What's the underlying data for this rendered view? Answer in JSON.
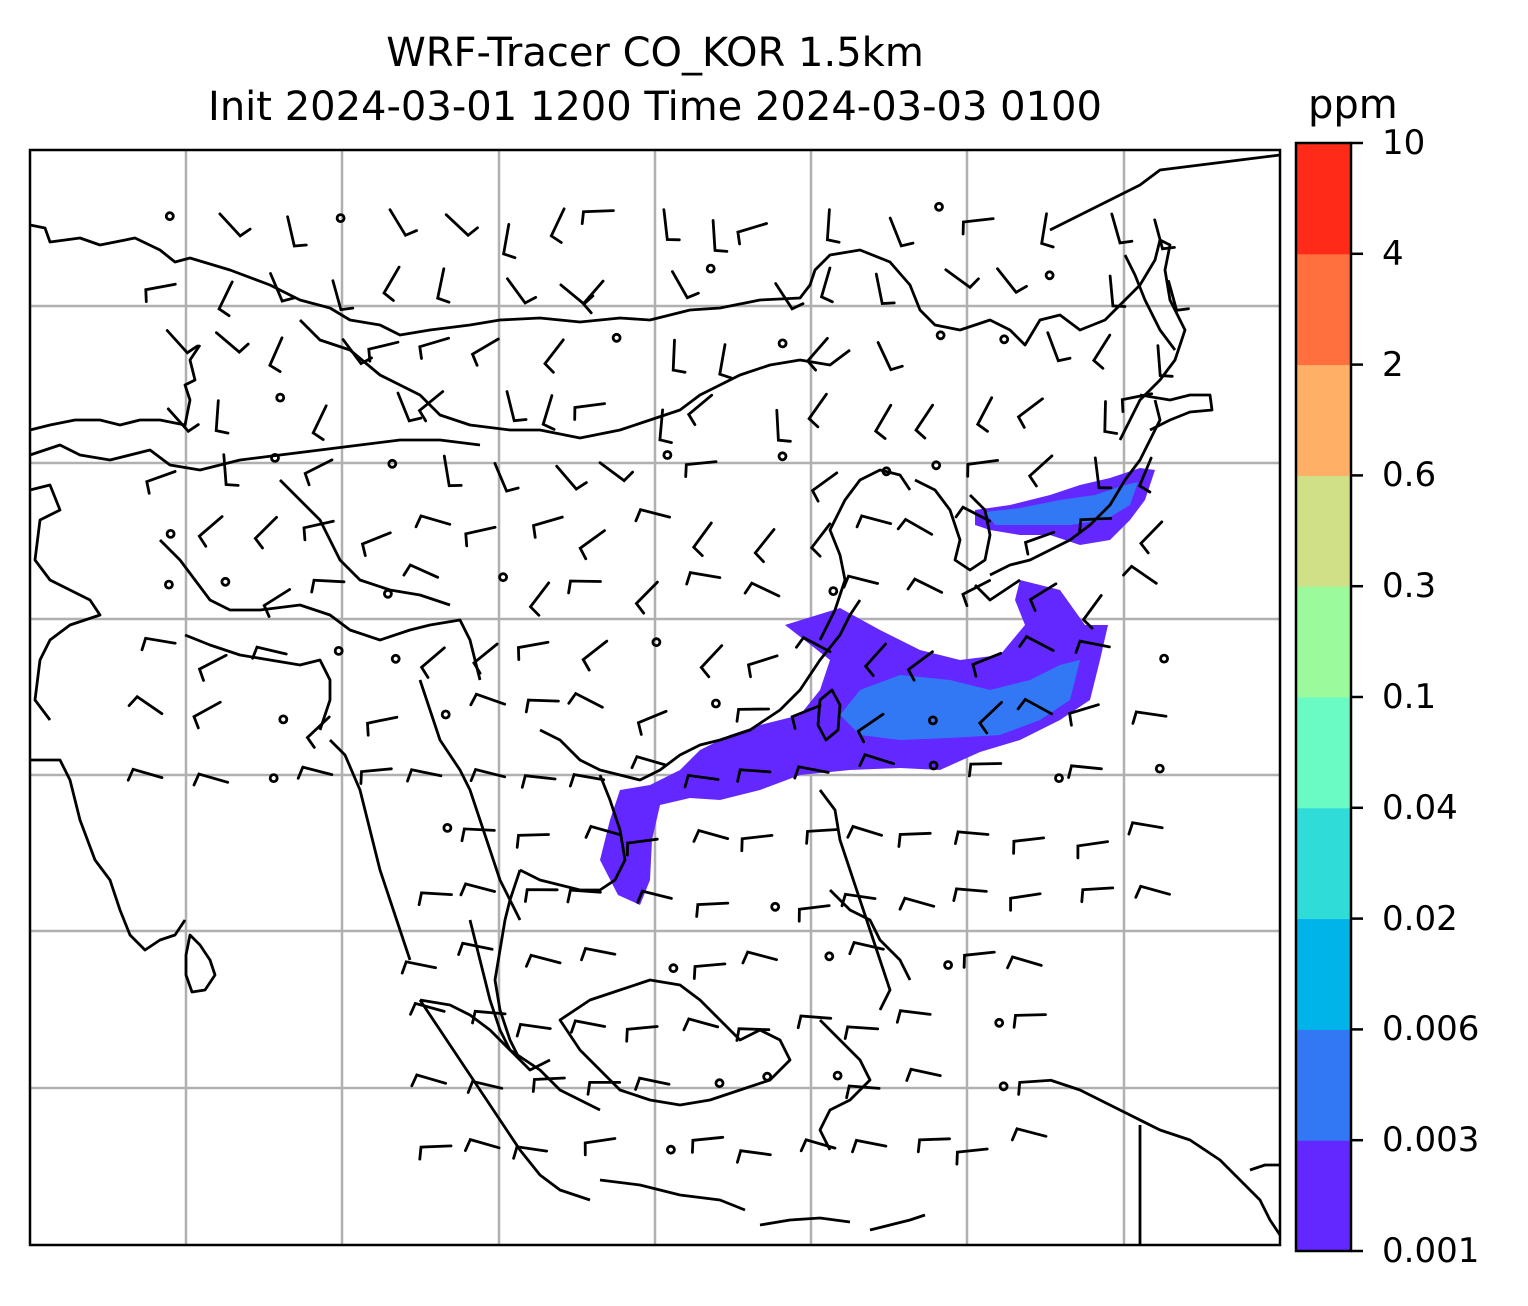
{
  "title_line1": "WRF-Tracer CO_KOR 1.5km",
  "title_line2": "Init 2024-03-01 1200 Time 2024-03-03 0100",
  "colorbar": {
    "unit": "ppm",
    "levels": [
      "0.001",
      "0.003",
      "0.006",
      "0.02",
      "0.04",
      "0.1",
      "0.3",
      "0.6",
      "2",
      "4",
      "10"
    ],
    "colors": [
      "#6328ff",
      "#3278f4",
      "#00b4ea",
      "#30dcd8",
      "#6afac4",
      "#9afa9c",
      "#d0e086",
      "#ffb066",
      "#ff703e",
      "#ff2a18"
    ]
  },
  "map": {
    "region": "East Asia / Southeast Asia",
    "gridlines": true,
    "gridline_color": "#b0b0b0",
    "coastline_color": "#000000",
    "plume_colors": [
      "#6328ff",
      "#3278f4"
    ],
    "wind_barbs": true
  }
}
